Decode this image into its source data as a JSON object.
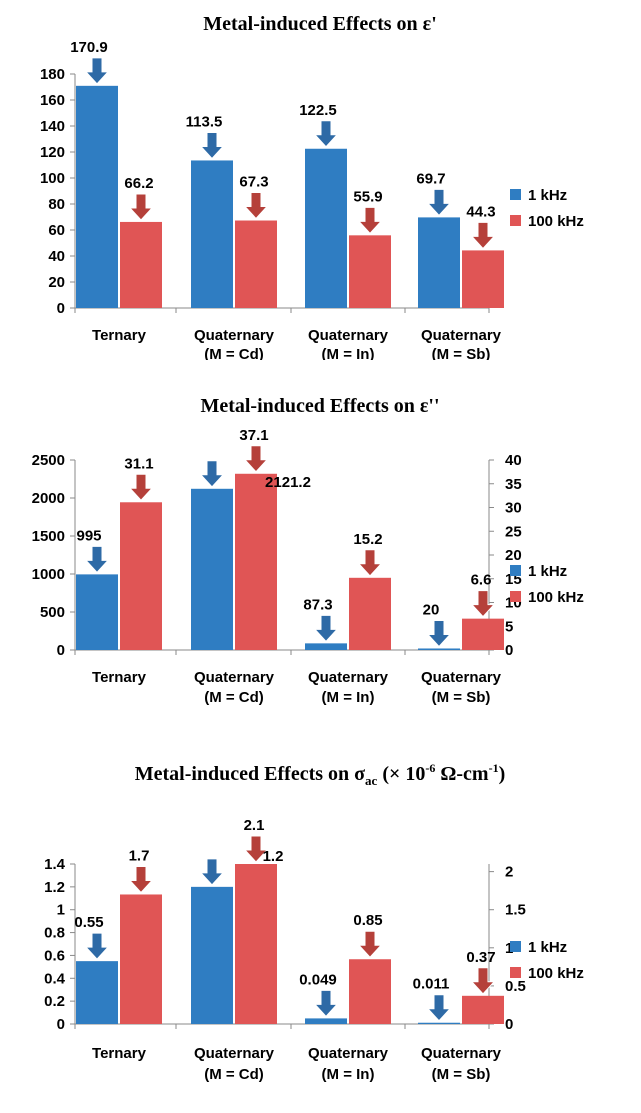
{
  "colors": {
    "series_1khz": "#2f7dc2",
    "series_100khz": "#e05555",
    "arrow_blue": "#2e6aa6",
    "arrow_red": "#b5403a",
    "axis": "#8a8a8a"
  },
  "chart_data": [
    {
      "type": "bar",
      "title": "Metal-induced Effects on ε'",
      "categories": [
        [
          "Ternary"
        ],
        [
          "Quaternary",
          "(M = Cd)"
        ],
        [
          "Quaternary",
          "(M = In)"
        ],
        [
          "Quaternary",
          "(M = Sb)"
        ]
      ],
      "series": [
        {
          "name": "1 kHz",
          "values": [
            170.9,
            113.5,
            122.5,
            69.7
          ],
          "labels": [
            "170.9",
            "113.5",
            "122.5",
            "69.7"
          ],
          "axis": "left"
        },
        {
          "name": "100 kHz",
          "values": [
            66.2,
            67.3,
            55.9,
            44.3
          ],
          "labels": [
            "66.2",
            "67.3",
            "55.9",
            "44.3"
          ],
          "axis": "left"
        }
      ],
      "y_left": {
        "min": 0,
        "max": 180,
        "ticks": [
          "0",
          "20",
          "40",
          "60",
          "80",
          "100",
          "120",
          "140",
          "160",
          "180"
        ]
      },
      "legend": "right",
      "grid": false
    },
    {
      "type": "bar",
      "title": "Metal-induced Effects on ε''",
      "categories": [
        [
          "Ternary"
        ],
        [
          "Quaternary",
          "(M = Cd)"
        ],
        [
          "Quaternary",
          "(M = In)"
        ],
        [
          "Quaternary",
          "(M = Sb)"
        ]
      ],
      "series": [
        {
          "name": "1 kHz",
          "values": [
            995,
            2121.2,
            87.3,
            20
          ],
          "labels": [
            "995",
            "2121.2",
            "87.3",
            "20"
          ],
          "axis": "left"
        },
        {
          "name": "100 kHz",
          "values": [
            31.1,
            37.1,
            15.2,
            6.6
          ],
          "labels": [
            "31.1",
            "37.1",
            "15.2",
            "6.6"
          ],
          "axis": "right"
        }
      ],
      "y_left": {
        "min": 0,
        "max": 2500,
        "ticks": [
          "0",
          "500",
          "1000",
          "1500",
          "2000",
          "2500"
        ]
      },
      "y_right": {
        "min": 0,
        "max": 40,
        "ticks": [
          "0",
          "5",
          "10",
          "15",
          "20",
          "25",
          "30",
          "35",
          "40"
        ]
      },
      "legend": "right",
      "grid": false
    },
    {
      "type": "bar",
      "title": "Metal-induced Effects on σac (× 10-6 Ω-cm-1)",
      "title_parts": {
        "main": "Metal-induced Effects on σ",
        "sub": "ac",
        "rest1": " (× 10",
        "sup1": "-6",
        "rest2": " Ω-cm",
        "sup2": "-1",
        "rest3": ")"
      },
      "categories": [
        [
          "Ternary"
        ],
        [
          "Quaternary",
          "(M = Cd)"
        ],
        [
          "Quaternary",
          "(M = In)"
        ],
        [
          "Quaternary",
          "(M = Sb)"
        ]
      ],
      "series": [
        {
          "name": "1 kHz",
          "values": [
            0.55,
            1.2,
            0.049,
            0.011
          ],
          "labels": [
            "0.55",
            "1.2",
            "0.049",
            "0.011"
          ],
          "axis": "left"
        },
        {
          "name": "100 kHz",
          "values": [
            1.7,
            2.1,
            0.85,
            0.37
          ],
          "labels": [
            "1.7",
            "2.1",
            "0.85",
            "0.37"
          ],
          "axis": "right"
        }
      ],
      "y_left": {
        "min": 0,
        "max": 1.4,
        "ticks": [
          "0",
          "0.2",
          "0.4",
          "0.6",
          "0.8",
          "1",
          "1.2",
          "1.4"
        ]
      },
      "y_right": {
        "min": 0,
        "max": 2.1,
        "ticks": [
          "0",
          "0.5",
          "1",
          "1.5",
          "2"
        ]
      },
      "legend": "right",
      "grid": false
    }
  ]
}
